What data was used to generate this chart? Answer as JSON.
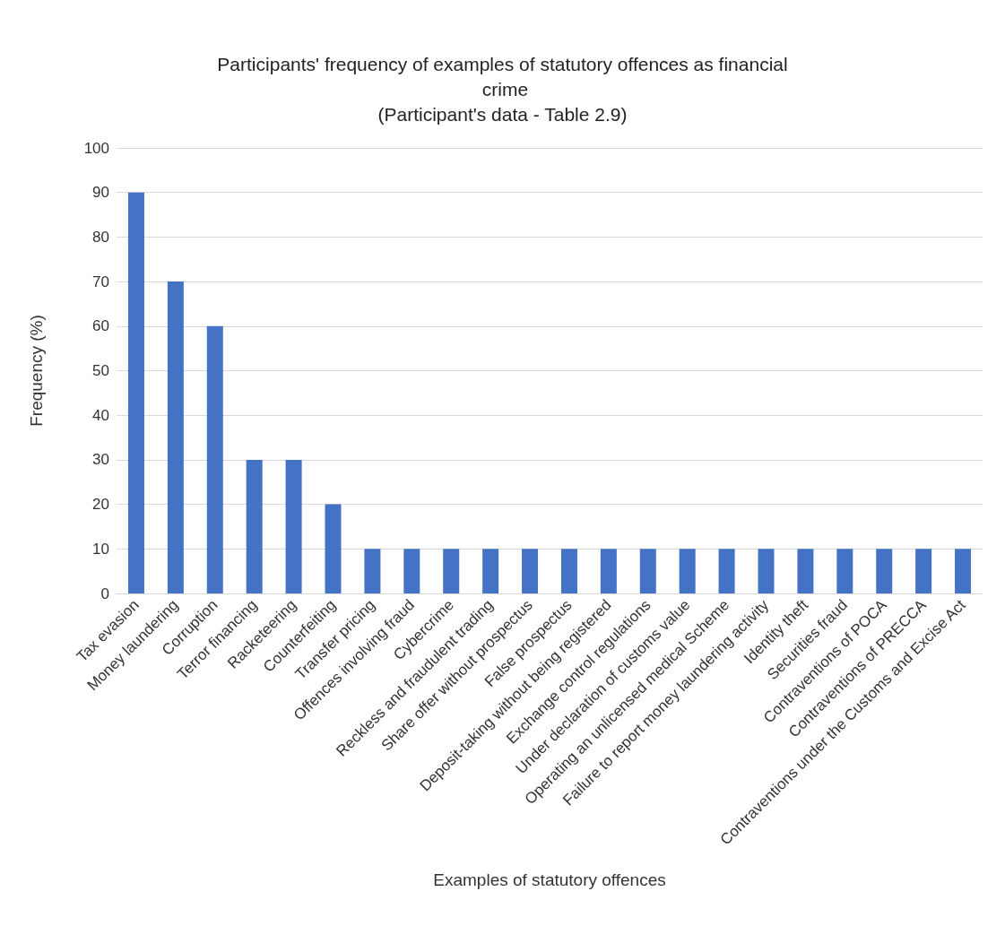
{
  "chart_data": {
    "type": "bar",
    "title": "Participants' frequency of examples of statutory offences as financial crime",
    "subtitle": "(Participant's data - Table 2.9)",
    "xlabel": "Examples of statutory offences",
    "ylabel": "Frequency (%)",
    "categories": [
      "Tax evasion",
      "Money laundering",
      "Corruption",
      "Terror financing",
      "Racketeering",
      "Counterfeiting",
      "Transfer pricing",
      "Offences involving fraud",
      "Cybercrime",
      "Reckless and fraudulent trading",
      "Share offer without prospectus",
      "False prospectus",
      "Deposit-taking without being registered",
      "Exchange control regulations",
      "Under declaration of customs value",
      "Operating an unlicensed medical Scheme",
      "Failure to report money laundering activity",
      "Identity theft",
      "Securities fraud",
      "Contraventions of POCA",
      "Contraventions of PRECCA",
      "Contraventions under the Customs and Excise Act"
    ],
    "values": [
      90,
      70,
      60,
      30,
      30,
      20,
      10,
      10,
      10,
      10,
      10,
      10,
      10,
      10,
      10,
      10,
      10,
      10,
      10,
      10,
      10,
      10
    ],
    "color": "#4472c4",
    "ylim": [
      0,
      100
    ],
    "yticks": [
      0,
      10,
      20,
      30,
      40,
      50,
      60,
      70,
      80,
      90,
      100
    ],
    "grid": "y"
  }
}
